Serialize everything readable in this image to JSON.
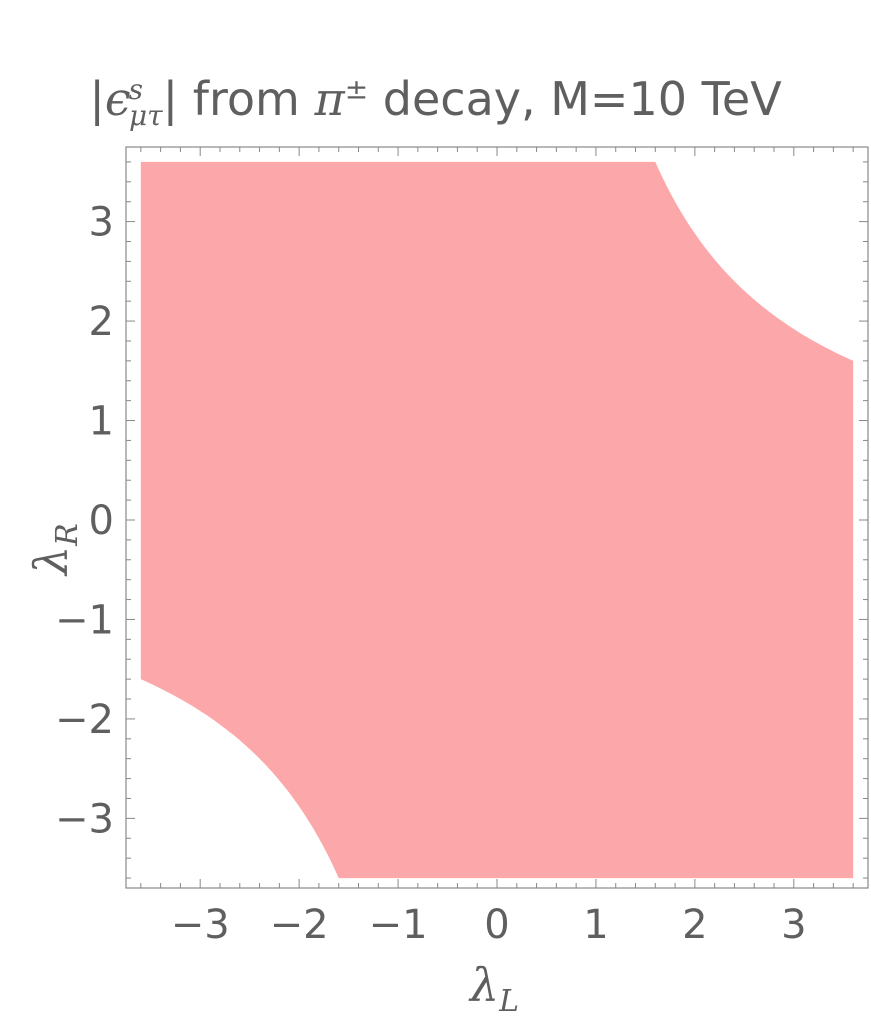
{
  "chart_data": {
    "type": "area",
    "title": {
      "pre": "|",
      "epsilon": "ϵ",
      "epsilon_sup": "s",
      "epsilon_sub": "μτ",
      "mid": "| from ",
      "pion": "π",
      "pion_sup": "±",
      "post": " decay, M=10 TeV"
    },
    "xlabel": {
      "symbol": "λ",
      "subscript": "L"
    },
    "ylabel": {
      "symbol": "λ",
      "subscript": "R"
    },
    "xlim": [
      -3.75,
      3.75
    ],
    "ylim": [
      -3.7,
      3.75
    ],
    "xticks": [
      {
        "value": -3,
        "label": "−3"
      },
      {
        "value": -2,
        "label": "−2"
      },
      {
        "value": -1,
        "label": "−1"
      },
      {
        "value": 0,
        "label": "0"
      },
      {
        "value": 1,
        "label": "1"
      },
      {
        "value": 2,
        "label": "2"
      },
      {
        "value": 3,
        "label": "3"
      }
    ],
    "yticks": [
      {
        "value": -3,
        "label": "−3"
      },
      {
        "value": -2,
        "label": "−2"
      },
      {
        "value": -1,
        "label": "−1"
      },
      {
        "value": 0,
        "label": "0"
      },
      {
        "value": 1,
        "label": "1"
      },
      {
        "value": 2,
        "label": "2"
      },
      {
        "value": 3,
        "label": "3"
      }
    ],
    "region": {
      "description_range": [
        -3.6,
        3.6
      ],
      "excluded_boundary": "lambda_L * lambda_R = 5.76",
      "product_threshold": 5.76,
      "fill_color": "#fca8aa"
    },
    "grid": false,
    "frame_color": "#888888",
    "text_color": "#5f5f5f"
  }
}
